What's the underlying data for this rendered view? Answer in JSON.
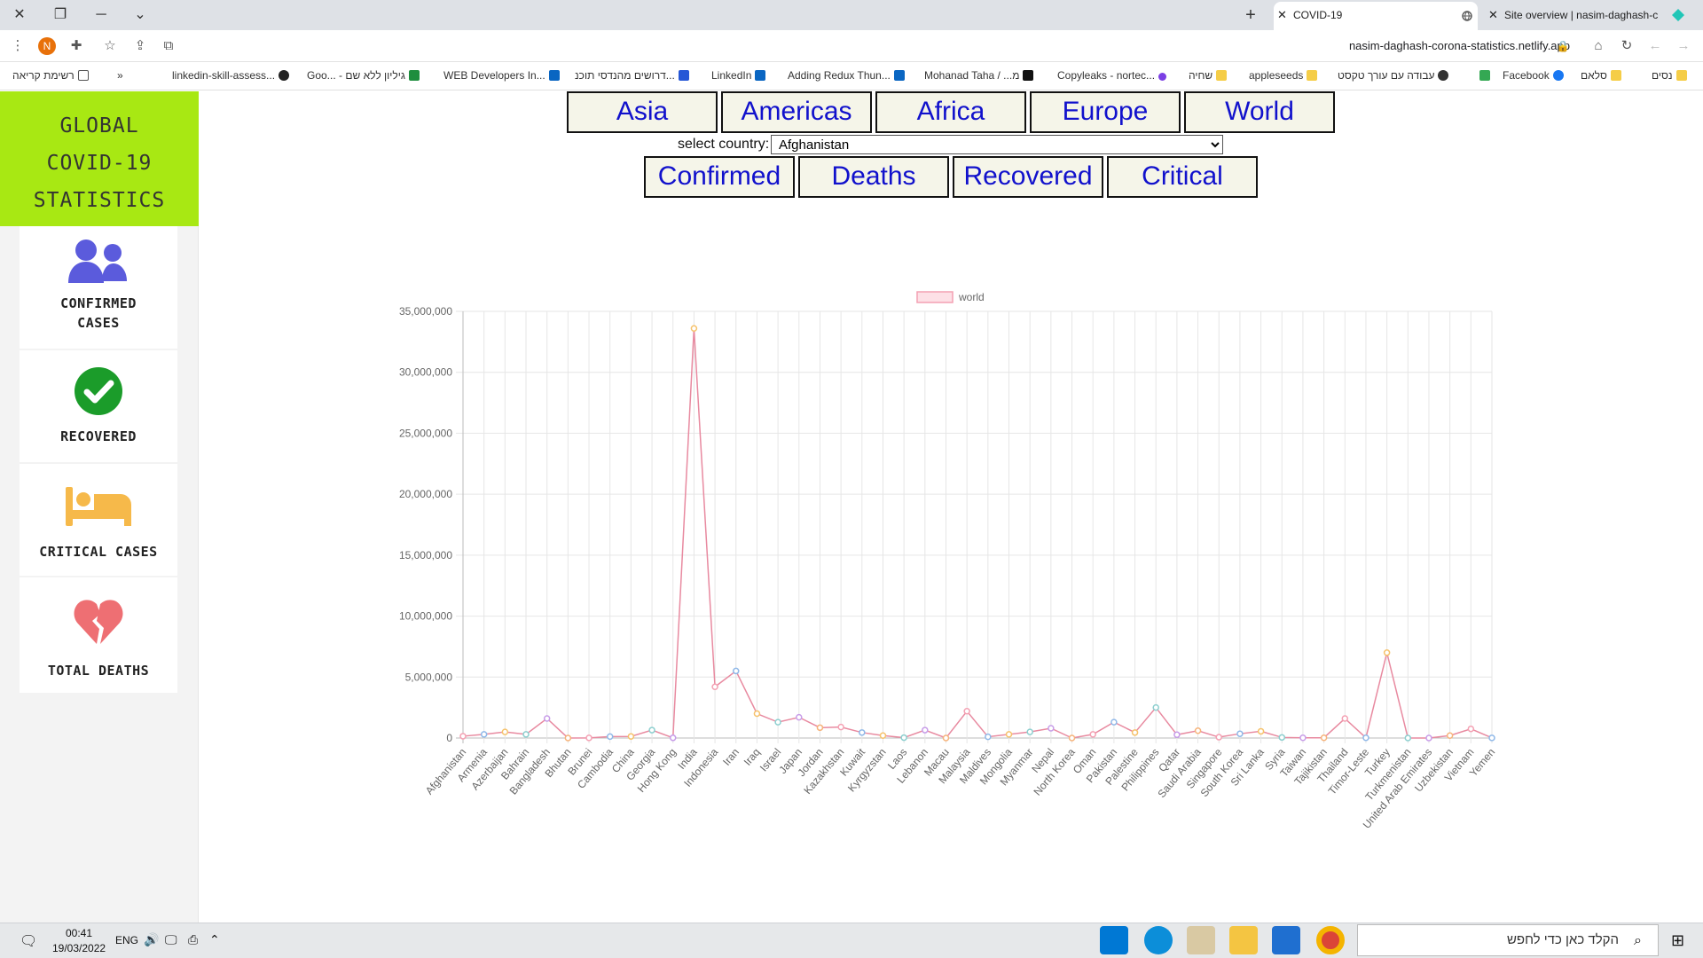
{
  "browser": {
    "tabs": [
      {
        "title": "COVID-19",
        "active": true
      },
      {
        "title": "Site overview | nasim-daghash-c",
        "active": false
      }
    ],
    "new_tab_label": "+",
    "url": "nasim-daghash-corona-statistics.netlify.app",
    "profile_initial": "N",
    "bookmarks": [
      "רשימת קריאה",
      "»",
      "linkedin-skill-assess...",
      "Goo... - גיליון ללא שם",
      "WEB Developers In...",
      "דרושים מהנדסי תוכנ...",
      "LinkedIn",
      "Adding Redux Thun...",
      "Mohanad Taha / ...מ",
      "Copyleaks - nortec...",
      "שחיה",
      "appleseeds",
      "עבודה עם עורך טקסט",
      "Facebook",
      "סלאם",
      "נסים"
    ]
  },
  "sidebar": {
    "brand_lines": [
      "GLOBAL",
      "COVID-19",
      "STATISTICS"
    ],
    "cards": [
      {
        "icon": "users-icon",
        "label_lines": [
          "CONFIRMED",
          "CASES"
        ],
        "color": "#5b5bdc"
      },
      {
        "icon": "check-circle-icon",
        "label_lines": [
          "RECOVERED"
        ],
        "color": "#1b9c2a"
      },
      {
        "icon": "bed-icon",
        "label_lines": [
          "CRITICAL CASES"
        ],
        "color": "#f6b94a"
      },
      {
        "icon": "broken-heart-icon",
        "label_lines": [
          "TOTAL DEATHS"
        ],
        "color": "#ee6f73"
      }
    ]
  },
  "controls": {
    "regions": [
      "Asia",
      "Americas",
      "Africa",
      "Europe",
      "World"
    ],
    "select_label": "select country:",
    "selected_country": "Afghanistan",
    "stats": [
      "Confirmed",
      "Deaths",
      "Recovered",
      "Critical"
    ]
  },
  "chart_data": {
    "type": "line",
    "series": [
      {
        "name": "world",
        "color": "#f4a1b3"
      }
    ],
    "ylim": [
      0,
      35000000
    ],
    "yticks": [
      "0",
      "5,000,000",
      "10,000,000",
      "15,000,000",
      "20,000,000",
      "25,000,000",
      "30,000,000",
      "35,000,000"
    ],
    "grid": true,
    "legend": "top-center",
    "categories": [
      "Afghanistan",
      "Armenia",
      "Azerbaijan",
      "Bahrain",
      "Bangladesh",
      "Bhutan",
      "Brunei",
      "Cambodia",
      "China",
      "Georgia",
      "Hong Kong",
      "India",
      "Indonesia",
      "Iran",
      "Iraq",
      "Israel",
      "Japan",
      "Jordan",
      "Kazakhstan",
      "Kuwait",
      "Kyrgyzstan",
      "Laos",
      "Lebanon",
      "Macau",
      "Malaysia",
      "Maldives",
      "Mongolia",
      "Myanmar",
      "Nepal",
      "North Korea",
      "Oman",
      "Pakistan",
      "Palestine",
      "Philippines",
      "Qatar",
      "Saudi Arabia",
      "Singapore",
      "South Korea",
      "Sri Lanka",
      "Syria",
      "Taiwan",
      "Tajikistan",
      "Thailand",
      "Timor-Leste",
      "Turkey",
      "Turkmenistan",
      "United Arab Emirates",
      "Uzbekistan",
      "Vietnam",
      "Yemen"
    ],
    "values": [
      150000,
      300000,
      500000,
      300000,
      1600000,
      2000,
      10000,
      120000,
      130000,
      650000,
      15000,
      33600000,
      4200000,
      5500000,
      2000000,
      1300000,
      1700000,
      850000,
      900000,
      450000,
      200000,
      30000,
      650000,
      100,
      2200000,
      100000,
      300000,
      500000,
      800000,
      0,
      300000,
      1300000,
      450000,
      2500000,
      270000,
      600000,
      70000,
      350000,
      550000,
      50000,
      20000,
      20000,
      1600000,
      20000,
      7000000,
      0,
      0,
      200000,
      750000,
      10000
    ],
    "point_colors": [
      "#f4a1b3",
      "#8fb8e8",
      "#f6c26b",
      "#8ccfcf",
      "#c79ce8",
      "#f6b37a",
      "#f4a1b3",
      "#8fb8e8",
      "#f6c26b",
      "#8ccfcf",
      "#c79ce8",
      "#f6c26b",
      "#f4a1b3",
      "#8fb8e8",
      "#f6c26b",
      "#8ccfcf",
      "#c79ce8",
      "#f6b37a",
      "#f4a1b3",
      "#8fb8e8",
      "#f6c26b",
      "#8ccfcf",
      "#c79ce8",
      "#f6b37a",
      "#f4a1b3",
      "#8fb8e8",
      "#f6c26b",
      "#8ccfcf",
      "#c79ce8",
      "#f6b37a",
      "#f4a1b3",
      "#8fb8e8",
      "#f6c26b",
      "#8ccfcf",
      "#c79ce8",
      "#f6b37a",
      "#f4a1b3",
      "#8fb8e8",
      "#f6c26b",
      "#8ccfcf",
      "#c79ce8",
      "#f6b37a",
      "#f4a1b3",
      "#8fb8e8",
      "#f6c26b",
      "#8ccfcf",
      "#c79ce8",
      "#f6b37a",
      "#f4a1b3",
      "#8fb8e8"
    ]
  },
  "taskbar": {
    "time": "00:41",
    "date": "19/03/2022",
    "lang": "ENG",
    "search_placeholder": "הקלד כאן כדי לחפש"
  }
}
